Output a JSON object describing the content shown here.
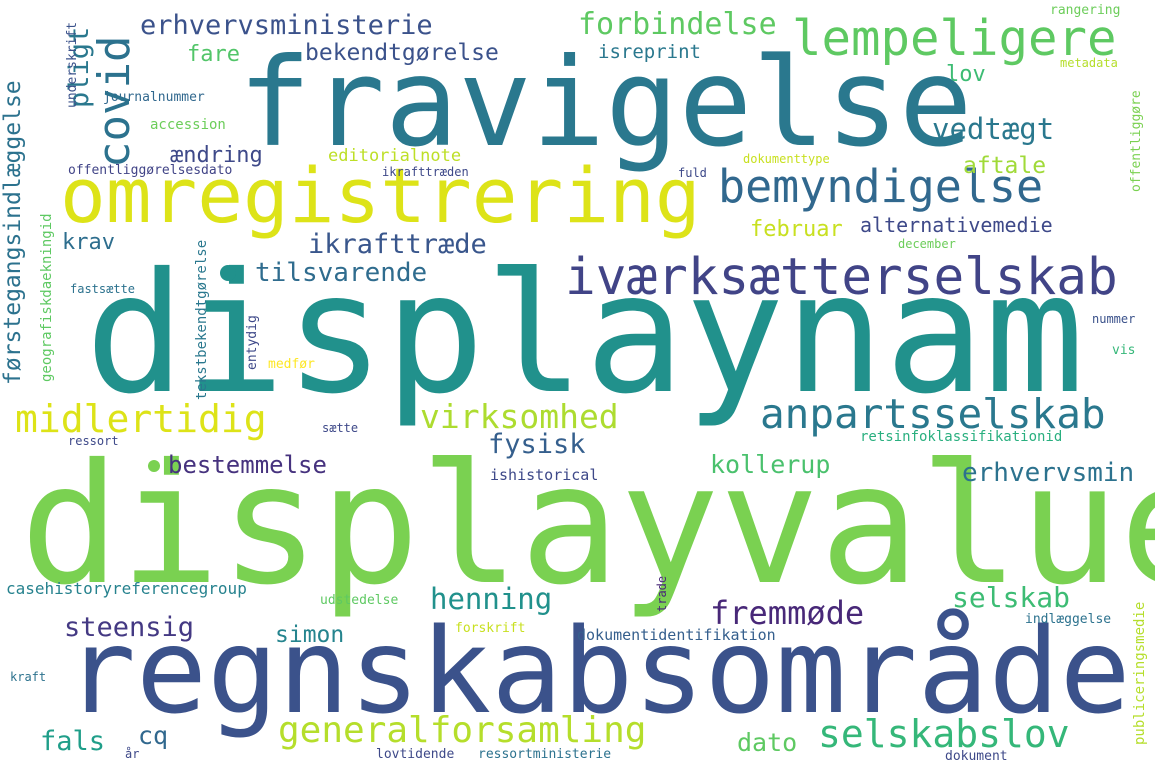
{
  "wordcloud": {
    "w01": {
      "text": "displaynam",
      "color": "#21918c"
    },
    "w02": {
      "text": "displayvalue",
      "color": "#7ad151"
    },
    "w03": {
      "text": "regnskabsområde",
      "color": "#3b528b"
    },
    "w04": {
      "text": "fravigelse",
      "color": "#2a788e"
    },
    "w05": {
      "text": "omregistrering",
      "color": "#dde318"
    },
    "w06": {
      "text": "iværksætterselskab",
      "color": "#414487"
    },
    "w07": {
      "text": "anpartsselskab",
      "color": "#2a788e"
    },
    "w08": {
      "text": "bemyndigelse",
      "color": "#31688e"
    },
    "w09": {
      "text": "lempeligere",
      "color": "#5ec962"
    },
    "w10": {
      "text": "generalforsamling",
      "color": "#b5de2b"
    },
    "w11": {
      "text": "selskabslov",
      "color": "#35b779"
    },
    "w12": {
      "text": "midlertidig",
      "color": "#dde318"
    },
    "w13": {
      "text": "fremmøde",
      "color": "#482878"
    },
    "w14": {
      "text": "virksomhed",
      "color": "#addc30"
    },
    "w15": {
      "text": "covid",
      "color": "#2c728e"
    },
    "w16": {
      "text": "forbindelse",
      "color": "#5ec962"
    },
    "w17": {
      "text": "erhvervsministerie",
      "color": "#3b528b"
    },
    "w18": {
      "text": "vedtægt",
      "color": "#2a788e"
    },
    "w19": {
      "text": "bestemmelse",
      "color": "#46327e"
    },
    "w20": {
      "text": "henning",
      "color": "#21918c"
    },
    "w21": {
      "text": "steensig",
      "color": "#443983"
    },
    "w22": {
      "text": "selskab",
      "color": "#3dbc74"
    },
    "w23": {
      "text": "ikrafttræde",
      "color": "#39568c"
    },
    "w24": {
      "text": "tilsvarende",
      "color": "#2f6c8e"
    },
    "w25": {
      "text": "fysisk",
      "color": "#355f8d"
    },
    "w26": {
      "text": "erhvervsmin",
      "color": "#2c728e"
    },
    "w27": {
      "text": "kollerup",
      "color": "#4ac16d"
    },
    "w28": {
      "text": "aftale",
      "color": "#a0da39"
    },
    "w29": {
      "text": "pligt",
      "color": "#2a788e"
    },
    "w30": {
      "text": "bekendtgørelse",
      "color": "#3b528b"
    },
    "w31": {
      "text": "fare",
      "color": "#52c569"
    },
    "w32": {
      "text": "lov",
      "color": "#3dbc74"
    },
    "w33": {
      "text": "krav",
      "color": "#2e6e8e"
    },
    "w34": {
      "text": "ændring",
      "color": "#3e4989"
    },
    "w35": {
      "text": "dato",
      "color": "#5ec962"
    },
    "w36": {
      "text": "fals",
      "color": "#1f9e89"
    },
    "w37": {
      "text": "cq",
      "color": "#31688e"
    },
    "w38": {
      "text": "simon",
      "color": "#25848e"
    },
    "w39": {
      "text": "alternativemedie",
      "color": "#3e4989"
    },
    "w40": {
      "text": "februar",
      "color": "#c8e020"
    },
    "w41": {
      "text": "editorialnote",
      "color": "#bddf26"
    },
    "w42": {
      "text": "isreprint",
      "color": "#2a788e"
    },
    "w43": {
      "text": "førstegangsindlæggelse",
      "color": "#2c728e"
    },
    "w44": {
      "text": "dokumentidentifikation",
      "color": "#355f8d"
    },
    "w45": {
      "text": "casehistoryreferencegroup",
      "color": "#26828e"
    },
    "w46": {
      "text": "ishistorical",
      "color": "#3e4989"
    },
    "w47": {
      "text": "retsinfoklassifikationid",
      "color": "#29af7f"
    },
    "w48": {
      "text": "offentliggørelsesdato",
      "color": "#414487"
    },
    "w49": {
      "text": "geografiskdaekningid",
      "color": "#5ec962"
    },
    "w50": {
      "text": "accession",
      "color": "#6ccd5a"
    },
    "w51": {
      "text": "journalnummer",
      "color": "#31688e"
    },
    "w52": {
      "text": "underskrift",
      "color": "#3b528b"
    },
    "w53": {
      "text": "rangering",
      "color": "#6ccd5a"
    },
    "w54": {
      "text": "metadata",
      "color": "#b5de2b"
    },
    "w55": {
      "text": "dokumenttype",
      "color": "#c8e020"
    },
    "w56": {
      "text": "offentliggøre",
      "color": "#7ad151"
    },
    "w57": {
      "text": "ikrafttræden",
      "color": "#3e4989"
    },
    "w58": {
      "text": "fuld",
      "color": "#3e4989"
    },
    "w59": {
      "text": "december",
      "color": "#6ccd5a"
    },
    "w60": {
      "text": "fastsætte",
      "color": "#2c728e"
    },
    "w61": {
      "text": "tekstbekendtgørelse",
      "color": "#2a788e"
    },
    "w62": {
      "text": "entydig",
      "color": "#3e4989"
    },
    "w63": {
      "text": "medfør",
      "color": "#fde725"
    },
    "w64": {
      "text": "nummer",
      "color": "#3b528b"
    },
    "w65": {
      "text": "vis",
      "color": "#35b779"
    },
    "w66": {
      "text": "ressort",
      "color": "#3e4989"
    },
    "w67": {
      "text": "sætte",
      "color": "#3e4989"
    },
    "w68": {
      "text": "udstedelse",
      "color": "#5ec962"
    },
    "w69": {
      "text": "trade",
      "color": "#482878"
    },
    "w70": {
      "text": "forskrift",
      "color": "#c8e020"
    },
    "w71": {
      "text": "indlæggelse",
      "color": "#2c728e"
    },
    "w72": {
      "text": "publiceringsmedie",
      "color": "#b5de2b"
    },
    "w73": {
      "text": "kraft",
      "color": "#2c728e"
    },
    "w74": {
      "text": "år",
      "color": "#3e4989"
    },
    "w75": {
      "text": "lovtidende",
      "color": "#3e4989"
    },
    "w76": {
      "text": "ressortministerie",
      "color": "#2c728e"
    },
    "w77": {
      "text": "dokument",
      "color": "#3e4989"
    }
  }
}
